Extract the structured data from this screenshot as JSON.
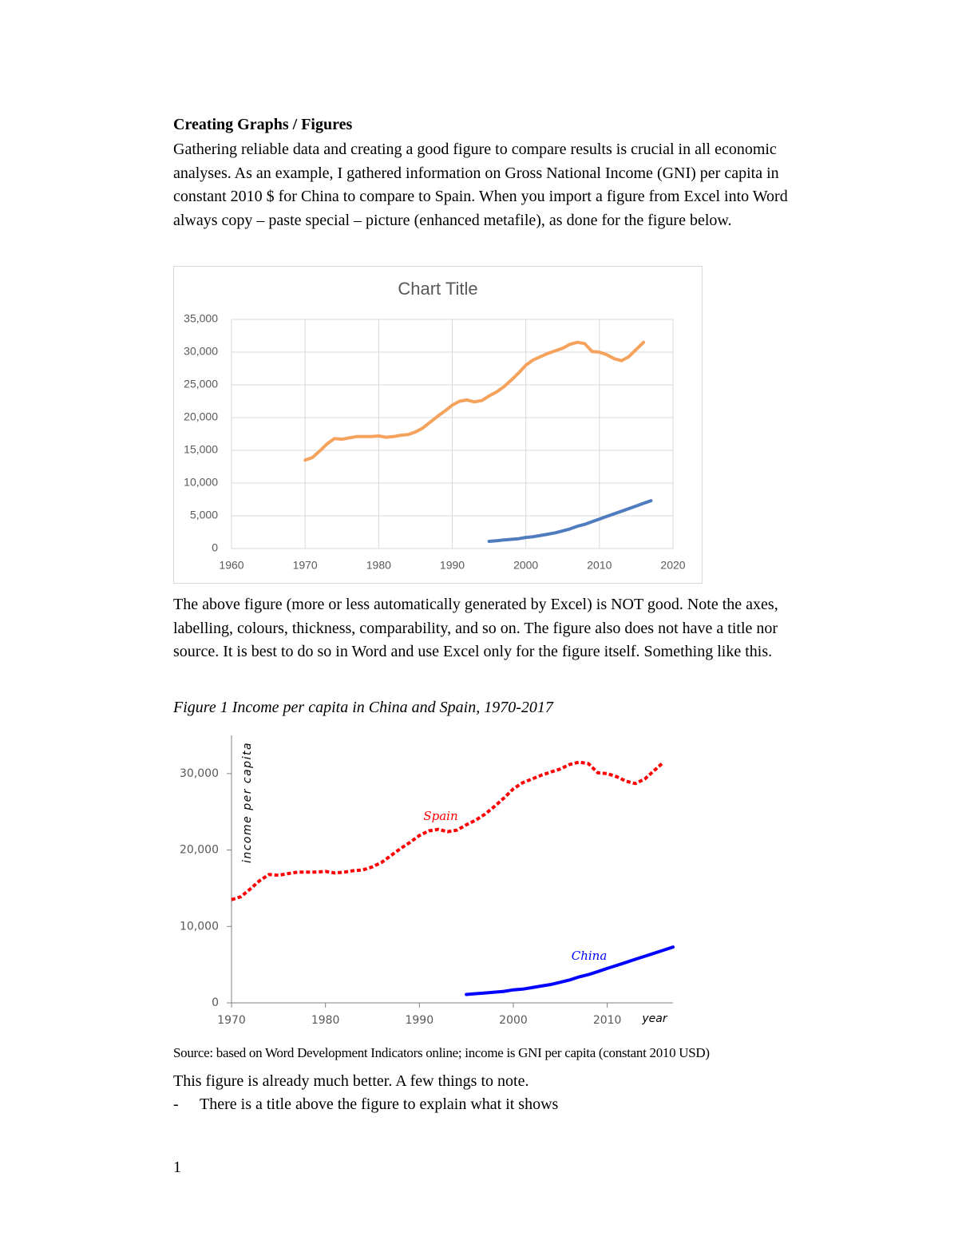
{
  "document": {
    "heading": "Creating Graphs / Figures",
    "paragraphs": [
      "Gathering reliable data and creating a good figure to compare results is crucial in all economic analyses. As an example, I gathered information on Gross National Income (GNI) per capita in constant 2010 $ for China to compare to Spain. When you import a figure from Excel into Word always copy – paste special – picture (enhanced metafile), as done for the figure below.",
      "The above figure (more or less automatically generated by Excel) is NOT good. Note the axes, labelling, colours, thickness, comparability, and so on. The figure also does not have a title nor source. It is best to do so in Word and use Excel only for the figure itself. Something like this."
    ],
    "figure_caption": "Figure 1 Income per capita in China and Spain, 1970-2017",
    "source": "Source: based on Word Development Indicators online; income is GNI per capita (constant 2010 USD)",
    "closing": "This figure is already much better. A few things to note.",
    "list_items": [
      "There is a title above the figure to explain what it shows"
    ],
    "list_marker": "-",
    "page_number": "1"
  },
  "chart_data": [
    {
      "type": "line",
      "title": "Chart Title",
      "grid": true,
      "xlim": [
        1960,
        2020
      ],
      "xticks": [
        1960,
        1970,
        1980,
        1990,
        2000,
        2010,
        2020
      ],
      "ylim": [
        0,
        35000
      ],
      "yticks": [
        0,
        {
          "value": 5000,
          "label": "5,000"
        },
        {
          "value": 10000,
          "label": "10,000"
        },
        {
          "value": 15000,
          "label": "15,000"
        },
        {
          "value": 20000,
          "label": "20,000"
        },
        {
          "value": 25000,
          "label": "25,000"
        },
        {
          "value": 30000,
          "label": "30,000"
        },
        {
          "value": 35000,
          "label": "35,000"
        }
      ],
      "series": [
        {
          "color": "#4f7bbf",
          "x": [
            1995,
            1996,
            1997,
            1998,
            1999,
            2000,
            2001,
            2002,
            2003,
            2004,
            2005,
            2006,
            2007,
            2008,
            2009,
            2010,
            2011,
            2012,
            2013,
            2014,
            2015,
            2016,
            2017
          ],
          "values": [
            1100,
            1200,
            1300,
            1400,
            1500,
            1700,
            1800,
            2000,
            2200,
            2400,
            2700,
            3000,
            3400,
            3700,
            4100,
            4500,
            4900,
            5300,
            5700,
            6100,
            6500,
            6900,
            7300
          ]
        },
        {
          "color": "#f5a25d",
          "x": [
            1970,
            1971,
            1972,
            1973,
            1974,
            1975,
            1976,
            1977,
            1978,
            1979,
            1980,
            1981,
            1982,
            1983,
            1984,
            1985,
            1986,
            1987,
            1988,
            1989,
            1990,
            1991,
            1992,
            1993,
            1994,
            1995,
            1996,
            1997,
            1998,
            1999,
            2000,
            2001,
            2002,
            2003,
            2004,
            2005,
            2006,
            2007,
            2008,
            2009,
            2010,
            2011,
            2012,
            2013,
            2014,
            2015,
            2016
          ],
          "values": [
            13500,
            13900,
            14900,
            16000,
            16800,
            16700,
            16900,
            17100,
            17100,
            17100,
            17200,
            17000,
            17100,
            17300,
            17400,
            17800,
            18400,
            19300,
            20200,
            21000,
            21900,
            22500,
            22700,
            22400,
            22600,
            23300,
            23900,
            24700,
            25700,
            26800,
            28000,
            28800,
            29300,
            29800,
            30200,
            30600,
            31200,
            31500,
            31300,
            30100,
            30000,
            29600,
            29000,
            28700,
            29300,
            30400,
            31500
          ]
        }
      ]
    },
    {
      "type": "line",
      "grid": false,
      "x_label": "year",
      "y_label": "income per capita",
      "xlim": [
        1970,
        2017
      ],
      "xticks": [
        1970,
        1980,
        1990,
        2000,
        2010
      ],
      "ylim": [
        0,
        35000
      ],
      "yticks": [
        0,
        {
          "value": 10000,
          "label": "10,000"
        },
        {
          "value": 20000,
          "label": "20,000"
        },
        {
          "value": 30000,
          "label": "30,000"
        }
      ],
      "series": [
        {
          "name": "Spain",
          "color": "#ff0000",
          "dashed": true,
          "x": [
            1970,
            1971,
            1972,
            1973,
            1974,
            1975,
            1976,
            1977,
            1978,
            1979,
            1980,
            1981,
            1982,
            1983,
            1984,
            1985,
            1986,
            1987,
            1988,
            1989,
            1990,
            1991,
            1992,
            1993,
            1994,
            1995,
            1996,
            1997,
            1998,
            1999,
            2000,
            2001,
            2002,
            2003,
            2004,
            2005,
            2006,
            2007,
            2008,
            2009,
            2010,
            2011,
            2012,
            2013,
            2014,
            2015,
            2016
          ],
          "values": [
            13500,
            13900,
            14900,
            16000,
            16800,
            16700,
            16900,
            17100,
            17100,
            17100,
            17200,
            17000,
            17100,
            17300,
            17400,
            17800,
            18400,
            19300,
            20200,
            21000,
            21900,
            22500,
            22700,
            22400,
            22600,
            23300,
            23900,
            24700,
            25700,
            26800,
            28000,
            28800,
            29300,
            29800,
            30200,
            30600,
            31200,
            31500,
            31300,
            30100,
            30000,
            29600,
            29000,
            28700,
            29300,
            30400,
            31500
          ]
        },
        {
          "name": "China",
          "color": "#0000ff",
          "dashed": false,
          "x": [
            1995,
            1996,
            1997,
            1998,
            1999,
            2000,
            2001,
            2002,
            2003,
            2004,
            2005,
            2006,
            2007,
            2008,
            2009,
            2010,
            2011,
            2012,
            2013,
            2014,
            2015,
            2016,
            2017
          ],
          "values": [
            1100,
            1200,
            1300,
            1400,
            1500,
            1700,
            1800,
            2000,
            2200,
            2400,
            2700,
            3000,
            3400,
            3700,
            4100,
            4500,
            4900,
            5300,
            5700,
            6100,
            6500,
            6900,
            7300
          ]
        }
      ]
    }
  ]
}
